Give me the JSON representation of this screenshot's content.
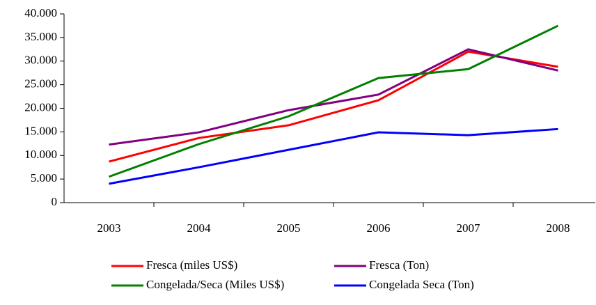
{
  "chart_data": {
    "type": "line",
    "categories": [
      "2003",
      "2004",
      "2005",
      "2006",
      "2007",
      "2008"
    ],
    "series": [
      {
        "name": "Fresca (miles US$)",
        "color": "#ff0000",
        "values": [
          8700,
          13700,
          16400,
          21700,
          32000,
          28800
        ]
      },
      {
        "name": "Fresca (Ton)",
        "color": "#800080",
        "values": [
          12300,
          14900,
          19600,
          22900,
          32500,
          28000
        ]
      },
      {
        "name": "Congelada/Seca (Miles US$)",
        "color": "#008000",
        "values": [
          5500,
          12400,
          18300,
          26400,
          28300,
          37500
        ]
      },
      {
        "name": "Congelada Seca (Ton)",
        "color": "#0000ff",
        "values": [
          4000,
          7500,
          11200,
          14900,
          14300,
          15600
        ]
      }
    ],
    "ylim": [
      0,
      40000
    ],
    "yticks": [
      0,
      {
        "value": 5000,
        "label": "5.000"
      },
      {
        "value": 10000,
        "label": "10.000"
      },
      {
        "value": 15000,
        "label": "15.000"
      },
      {
        "value": 20000,
        "label": "20.000"
      },
      {
        "value": 25000,
        "label": "25.000"
      },
      {
        "value": 30000,
        "label": "30.000"
      },
      {
        "value": 35000,
        "label": "35.000"
      },
      {
        "value": 40000,
        "label": "40.000"
      }
    ],
    "grid": false,
    "legend": "bottom"
  }
}
